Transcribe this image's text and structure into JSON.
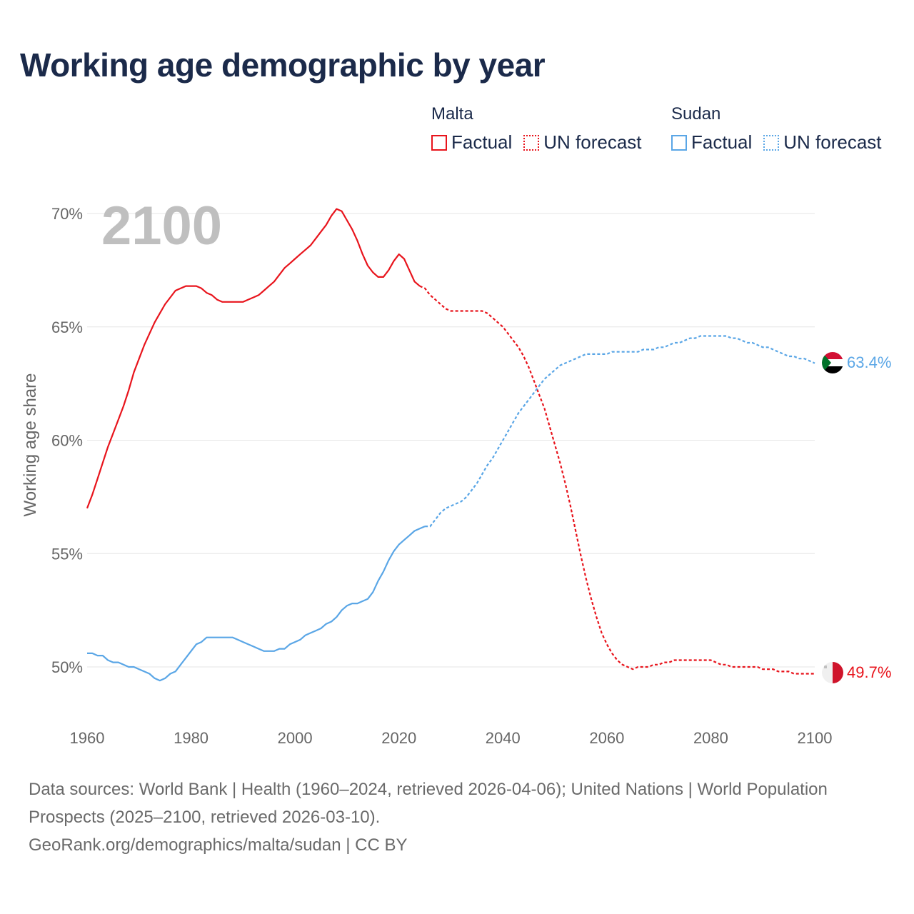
{
  "chart_data": {
    "type": "line",
    "title": "Working age demographic by year",
    "year_label": "2100",
    "ylabel": "Working age share",
    "xlabel": "",
    "xlim": [
      1960,
      2100
    ],
    "ylim": [
      48,
      71
    ],
    "x_ticks": [
      1960,
      1980,
      2000,
      2020,
      2040,
      2060,
      2080,
      2100
    ],
    "x_tick_labels": [
      "1960",
      "1980",
      "2000",
      "2020",
      "2040",
      "2060",
      "2080",
      "2100"
    ],
    "y_ticks": [
      50,
      55,
      60,
      65,
      70
    ],
    "y_tick_labels": [
      "50%",
      "55%",
      "60%",
      "65%",
      "70%"
    ],
    "gridlines": true,
    "legend_placement": "top-right",
    "series": [
      {
        "name": "Malta",
        "color": "#e8141c",
        "factual_label": "Factual",
        "forecast_label": "UN forecast",
        "end_label": "49.7%",
        "flag": "malta-flag",
        "factual": [
          [
            1960,
            57.0
          ],
          [
            1961,
            57.6
          ],
          [
            1962,
            58.3
          ],
          [
            1963,
            59.0
          ],
          [
            1964,
            59.7
          ],
          [
            1965,
            60.3
          ],
          [
            1966,
            60.9
          ],
          [
            1967,
            61.5
          ],
          [
            1968,
            62.2
          ],
          [
            1969,
            63.0
          ],
          [
            1970,
            63.6
          ],
          [
            1971,
            64.2
          ],
          [
            1972,
            64.7
          ],
          [
            1973,
            65.2
          ],
          [
            1974,
            65.6
          ],
          [
            1975,
            66.0
          ],
          [
            1976,
            66.3
          ],
          [
            1977,
            66.6
          ],
          [
            1978,
            66.7
          ],
          [
            1979,
            66.8
          ],
          [
            1980,
            66.8
          ],
          [
            1981,
            66.8
          ],
          [
            1982,
            66.7
          ],
          [
            1983,
            66.5
          ],
          [
            1984,
            66.4
          ],
          [
            1985,
            66.2
          ],
          [
            1986,
            66.1
          ],
          [
            1987,
            66.1
          ],
          [
            1988,
            66.1
          ],
          [
            1989,
            66.1
          ],
          [
            1990,
            66.1
          ],
          [
            1991,
            66.2
          ],
          [
            1992,
            66.3
          ],
          [
            1993,
            66.4
          ],
          [
            1994,
            66.6
          ],
          [
            1995,
            66.8
          ],
          [
            1996,
            67.0
          ],
          [
            1997,
            67.3
          ],
          [
            1998,
            67.6
          ],
          [
            1999,
            67.8
          ],
          [
            2000,
            68.0
          ],
          [
            2001,
            68.2
          ],
          [
            2002,
            68.4
          ],
          [
            2003,
            68.6
          ],
          [
            2004,
            68.9
          ],
          [
            2005,
            69.2
          ],
          [
            2006,
            69.5
          ],
          [
            2007,
            69.9
          ],
          [
            2008,
            70.2
          ],
          [
            2009,
            70.1
          ],
          [
            2010,
            69.7
          ],
          [
            2011,
            69.3
          ],
          [
            2012,
            68.8
          ],
          [
            2013,
            68.2
          ],
          [
            2014,
            67.7
          ],
          [
            2015,
            67.4
          ],
          [
            2016,
            67.2
          ],
          [
            2017,
            67.2
          ],
          [
            2018,
            67.5
          ],
          [
            2019,
            67.9
          ],
          [
            2020,
            68.2
          ],
          [
            2021,
            68.0
          ],
          [
            2022,
            67.5
          ],
          [
            2023,
            67.0
          ],
          [
            2024,
            66.8
          ]
        ],
        "forecast": [
          [
            2024,
            66.8
          ],
          [
            2025,
            66.7
          ],
          [
            2026,
            66.4
          ],
          [
            2027,
            66.2
          ],
          [
            2028,
            66.0
          ],
          [
            2029,
            65.8
          ],
          [
            2030,
            65.7
          ],
          [
            2031,
            65.7
          ],
          [
            2032,
            65.7
          ],
          [
            2033,
            65.7
          ],
          [
            2034,
            65.7
          ],
          [
            2035,
            65.7
          ],
          [
            2036,
            65.7
          ],
          [
            2037,
            65.6
          ],
          [
            2038,
            65.4
          ],
          [
            2039,
            65.2
          ],
          [
            2040,
            65.0
          ],
          [
            2041,
            64.7
          ],
          [
            2042,
            64.4
          ],
          [
            2043,
            64.1
          ],
          [
            2044,
            63.7
          ],
          [
            2045,
            63.2
          ],
          [
            2046,
            62.6
          ],
          [
            2047,
            62.0
          ],
          [
            2048,
            61.4
          ],
          [
            2049,
            60.6
          ],
          [
            2050,
            59.8
          ],
          [
            2051,
            59.0
          ],
          [
            2052,
            58.1
          ],
          [
            2053,
            57.1
          ],
          [
            2054,
            56.0
          ],
          [
            2055,
            54.9
          ],
          [
            2056,
            53.9
          ],
          [
            2057,
            53.0
          ],
          [
            2058,
            52.2
          ],
          [
            2059,
            51.5
          ],
          [
            2060,
            51.0
          ],
          [
            2061,
            50.6
          ],
          [
            2062,
            50.3
          ],
          [
            2063,
            50.1
          ],
          [
            2064,
            50.0
          ],
          [
            2065,
            49.9
          ],
          [
            2066,
            50.0
          ],
          [
            2067,
            50.0
          ],
          [
            2068,
            50.0
          ],
          [
            2069,
            50.1
          ],
          [
            2070,
            50.1
          ],
          [
            2071,
            50.2
          ],
          [
            2072,
            50.2
          ],
          [
            2073,
            50.3
          ],
          [
            2074,
            50.3
          ],
          [
            2075,
            50.3
          ],
          [
            2076,
            50.3
          ],
          [
            2077,
            50.3
          ],
          [
            2078,
            50.3
          ],
          [
            2079,
            50.3
          ],
          [
            2080,
            50.3
          ],
          [
            2081,
            50.2
          ],
          [
            2082,
            50.1
          ],
          [
            2083,
            50.1
          ],
          [
            2084,
            50.0
          ],
          [
            2085,
            50.0
          ],
          [
            2086,
            50.0
          ],
          [
            2087,
            50.0
          ],
          [
            2088,
            50.0
          ],
          [
            2089,
            50.0
          ],
          [
            2090,
            49.9
          ],
          [
            2091,
            49.9
          ],
          [
            2092,
            49.9
          ],
          [
            2093,
            49.8
          ],
          [
            2094,
            49.8
          ],
          [
            2095,
            49.8
          ],
          [
            2096,
            49.7
          ],
          [
            2097,
            49.7
          ],
          [
            2098,
            49.7
          ],
          [
            2099,
            49.7
          ],
          [
            2100,
            49.7
          ]
        ]
      },
      {
        "name": "Sudan",
        "color": "#5aa6e6",
        "factual_label": "Factual",
        "forecast_label": "UN forecast",
        "end_label": "63.4%",
        "flag": "sudan-flag",
        "factual": [
          [
            1960,
            50.6
          ],
          [
            1961,
            50.6
          ],
          [
            1962,
            50.5
          ],
          [
            1963,
            50.5
          ],
          [
            1964,
            50.3
          ],
          [
            1965,
            50.2
          ],
          [
            1966,
            50.2
          ],
          [
            1967,
            50.1
          ],
          [
            1968,
            50.0
          ],
          [
            1969,
            50.0
          ],
          [
            1970,
            49.9
          ],
          [
            1971,
            49.8
          ],
          [
            1972,
            49.7
          ],
          [
            1973,
            49.5
          ],
          [
            1974,
            49.4
          ],
          [
            1975,
            49.5
          ],
          [
            1976,
            49.7
          ],
          [
            1977,
            49.8
          ],
          [
            1978,
            50.1
          ],
          [
            1979,
            50.4
          ],
          [
            1980,
            50.7
          ],
          [
            1981,
            51.0
          ],
          [
            1982,
            51.1
          ],
          [
            1983,
            51.3
          ],
          [
            1984,
            51.3
          ],
          [
            1985,
            51.3
          ],
          [
            1986,
            51.3
          ],
          [
            1987,
            51.3
          ],
          [
            1988,
            51.3
          ],
          [
            1989,
            51.2
          ],
          [
            1990,
            51.1
          ],
          [
            1991,
            51.0
          ],
          [
            1992,
            50.9
          ],
          [
            1993,
            50.8
          ],
          [
            1994,
            50.7
          ],
          [
            1995,
            50.7
          ],
          [
            1996,
            50.7
          ],
          [
            1997,
            50.8
          ],
          [
            1998,
            50.8
          ],
          [
            1999,
            51.0
          ],
          [
            2000,
            51.1
          ],
          [
            2001,
            51.2
          ],
          [
            2002,
            51.4
          ],
          [
            2003,
            51.5
          ],
          [
            2004,
            51.6
          ],
          [
            2005,
            51.7
          ],
          [
            2006,
            51.9
          ],
          [
            2007,
            52.0
          ],
          [
            2008,
            52.2
          ],
          [
            2009,
            52.5
          ],
          [
            2010,
            52.7
          ],
          [
            2011,
            52.8
          ],
          [
            2012,
            52.8
          ],
          [
            2013,
            52.9
          ],
          [
            2014,
            53.0
          ],
          [
            2015,
            53.3
          ],
          [
            2016,
            53.8
          ],
          [
            2017,
            54.2
          ],
          [
            2018,
            54.7
          ],
          [
            2019,
            55.1
          ],
          [
            2020,
            55.4
          ],
          [
            2021,
            55.6
          ],
          [
            2022,
            55.8
          ],
          [
            2023,
            56.0
          ],
          [
            2024,
            56.1
          ],
          [
            2025,
            56.2
          ]
        ],
        "forecast": [
          [
            2025,
            56.2
          ],
          [
            2026,
            56.2
          ],
          [
            2027,
            56.5
          ],
          [
            2028,
            56.8
          ],
          [
            2029,
            57.0
          ],
          [
            2030,
            57.1
          ],
          [
            2031,
            57.2
          ],
          [
            2032,
            57.3
          ],
          [
            2033,
            57.5
          ],
          [
            2034,
            57.8
          ],
          [
            2035,
            58.1
          ],
          [
            2036,
            58.5
          ],
          [
            2037,
            58.9
          ],
          [
            2038,
            59.2
          ],
          [
            2039,
            59.6
          ],
          [
            2040,
            60.0
          ],
          [
            2041,
            60.4
          ],
          [
            2042,
            60.8
          ],
          [
            2043,
            61.2
          ],
          [
            2044,
            61.5
          ],
          [
            2045,
            61.8
          ],
          [
            2046,
            62.1
          ],
          [
            2047,
            62.4
          ],
          [
            2048,
            62.7
          ],
          [
            2049,
            62.9
          ],
          [
            2050,
            63.1
          ],
          [
            2051,
            63.3
          ],
          [
            2052,
            63.4
          ],
          [
            2053,
            63.5
          ],
          [
            2054,
            63.6
          ],
          [
            2055,
            63.7
          ],
          [
            2056,
            63.8
          ],
          [
            2057,
            63.8
          ],
          [
            2058,
            63.8
          ],
          [
            2059,
            63.8
          ],
          [
            2060,
            63.8
          ],
          [
            2061,
            63.9
          ],
          [
            2062,
            63.9
          ],
          [
            2063,
            63.9
          ],
          [
            2064,
            63.9
          ],
          [
            2065,
            63.9
          ],
          [
            2066,
            63.9
          ],
          [
            2067,
            64.0
          ],
          [
            2068,
            64.0
          ],
          [
            2069,
            64.0
          ],
          [
            2070,
            64.1
          ],
          [
            2071,
            64.1
          ],
          [
            2072,
            64.2
          ],
          [
            2073,
            64.3
          ],
          [
            2074,
            64.3
          ],
          [
            2075,
            64.4
          ],
          [
            2076,
            64.5
          ],
          [
            2077,
            64.5
          ],
          [
            2078,
            64.6
          ],
          [
            2079,
            64.6
          ],
          [
            2080,
            64.6
          ],
          [
            2081,
            64.6
          ],
          [
            2082,
            64.6
          ],
          [
            2083,
            64.6
          ],
          [
            2084,
            64.5
          ],
          [
            2085,
            64.5
          ],
          [
            2086,
            64.4
          ],
          [
            2087,
            64.3
          ],
          [
            2088,
            64.3
          ],
          [
            2089,
            64.2
          ],
          [
            2090,
            64.1
          ],
          [
            2091,
            64.1
          ],
          [
            2092,
            64.0
          ],
          [
            2093,
            63.9
          ],
          [
            2094,
            63.8
          ],
          [
            2095,
            63.7
          ],
          [
            2096,
            63.7
          ],
          [
            2097,
            63.6
          ],
          [
            2098,
            63.6
          ],
          [
            2099,
            63.5
          ],
          [
            2100,
            63.4
          ]
        ]
      }
    ]
  },
  "legend": {
    "malta": {
      "group_label": "Malta",
      "factual_label": "Factual",
      "forecast_label": "UN forecast"
    },
    "sudan": {
      "group_label": "Sudan",
      "factual_label": "Factual",
      "forecast_label": "UN forecast"
    }
  },
  "source": {
    "line1": "Data sources: World Bank | Health (1960–2024, retrieved 2026-04-06); United Nations | World Population Prospects (2025–2100, retrieved 2026-03-10).",
    "line2": "GeoRank.org/demographics/malta/sudan | CC BY"
  },
  "colors": {
    "title": "#1b2a4a",
    "malta": "#e8141c",
    "sudan": "#5aa6e6",
    "axis_text": "#666666",
    "grid": "#e6e6e6",
    "year_watermark": "#bfbfbf"
  }
}
